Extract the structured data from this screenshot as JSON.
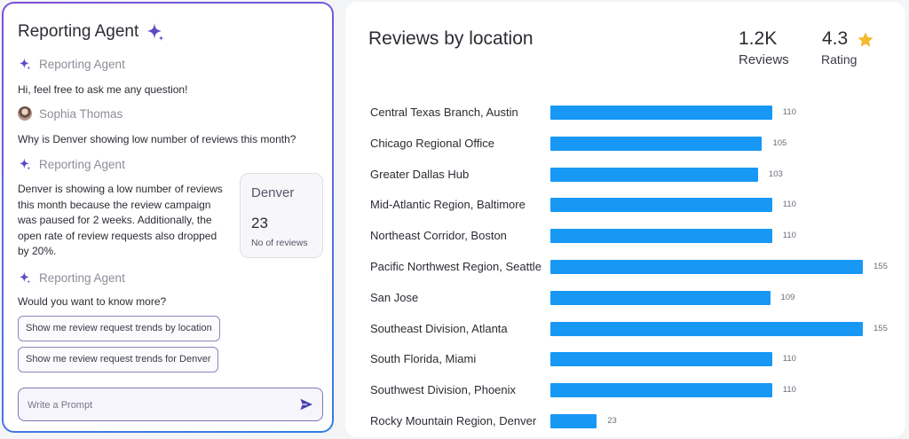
{
  "agent": {
    "title": "Reporting Agent",
    "agent_name": "Reporting Agent",
    "user_name": "Sophia Thomas",
    "messages": [
      "Hi, feel free to ask me any question!",
      "Why is Denver showing low number of reviews this month?",
      "Denver is showing a low number of reviews this month because the review campaign was paused for 2 weeks. Additionally, the open rate of review requests also dropped by 20%.",
      "Would you want to know more?"
    ],
    "stat_card": {
      "city": "Denver",
      "value": "23",
      "label": "No of reviews"
    },
    "suggestions": [
      "Show me review request trends by location",
      "Show me review request trends for Denver"
    ],
    "prompt_placeholder": "Write a Prompt",
    "prompt_value": ""
  },
  "reviews": {
    "title": "Reviews by location",
    "total_reviews": "1.2K",
    "total_reviews_label": "Reviews",
    "rating": "4.3",
    "rating_label": "Rating"
  },
  "chart_data": {
    "type": "bar",
    "orientation": "horizontal",
    "categories": [
      "Central Texas Branch, Austin",
      "Chicago Regional Office",
      "Greater Dallas Hub",
      "Mid-Atlantic Region, Baltimore",
      "Northeast Corridor, Boston",
      "Pacific Northwest Region, Seattle",
      "San Jose",
      "Southeast Division, Atlanta",
      "South Florida, Miami",
      "Southwest Division, Phoenix",
      "Rocky Mountain Region, Denver"
    ],
    "values": [
      110,
      105,
      103,
      110,
      110,
      155,
      109,
      155,
      110,
      110,
      23
    ],
    "xlim": [
      0,
      155
    ],
    "grid": false,
    "data_labels": true
  },
  "colors": {
    "bar": "#1798f5",
    "accent_purple": "#5b4bc4",
    "star": "#f5b82e"
  },
  "icons": {
    "sparkle": "sparkle-icon",
    "send": "send-icon",
    "star": "star-icon",
    "avatar": "avatar"
  }
}
